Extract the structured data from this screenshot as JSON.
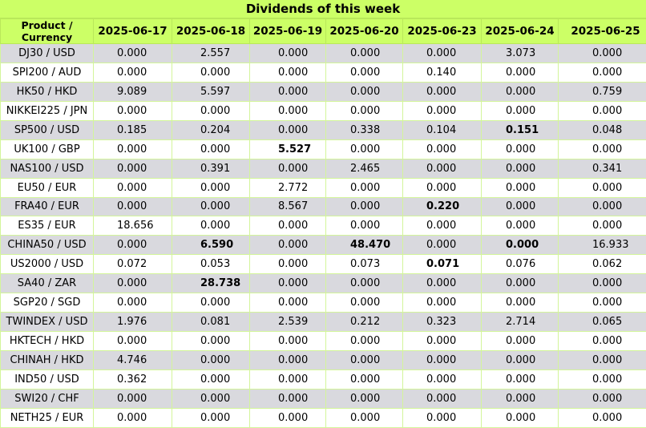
{
  "title": "Dividends of this week",
  "header": {
    "product": "Product / Currency",
    "dates": [
      "2025-06-17",
      "2025-06-18",
      "2025-06-19",
      "2025-06-20",
      "2025-06-23",
      "2025-06-24",
      "2025-06-25"
    ]
  },
  "rows": [
    {
      "product": "DJ30 / USD",
      "values": [
        "0.000",
        "2.557",
        "0.000",
        "0.000",
        "0.000",
        "3.073",
        "0.000"
      ],
      "bold": []
    },
    {
      "product": "SPI200 / AUD",
      "values": [
        "0.000",
        "0.000",
        "0.000",
        "0.000",
        "0.140",
        "0.000",
        "0.000"
      ],
      "bold": []
    },
    {
      "product": "HK50 / HKD",
      "values": [
        "9.089",
        "5.597",
        "0.000",
        "0.000",
        "0.000",
        "0.000",
        "0.759"
      ],
      "bold": []
    },
    {
      "product": "NIKKEI225 / JPN",
      "values": [
        "0.000",
        "0.000",
        "0.000",
        "0.000",
        "0.000",
        "0.000",
        "0.000"
      ],
      "bold": []
    },
    {
      "product": "SP500 / USD",
      "values": [
        "0.185",
        "0.204",
        "0.000",
        "0.338",
        "0.104",
        "0.151",
        "0.048"
      ],
      "bold": [
        5
      ]
    },
    {
      "product": "UK100 / GBP",
      "values": [
        "0.000",
        "0.000",
        "5.527",
        "0.000",
        "0.000",
        "0.000",
        "0.000"
      ],
      "bold": [
        2
      ]
    },
    {
      "product": "NAS100 / USD",
      "values": [
        "0.000",
        "0.391",
        "0.000",
        "2.465",
        "0.000",
        "0.000",
        "0.341"
      ],
      "bold": []
    },
    {
      "product": "EU50 / EUR",
      "values": [
        "0.000",
        "0.000",
        "2.772",
        "0.000",
        "0.000",
        "0.000",
        "0.000"
      ],
      "bold": []
    },
    {
      "product": "FRA40 / EUR",
      "values": [
        "0.000",
        "0.000",
        "8.567",
        "0.000",
        "0.220",
        "0.000",
        "0.000"
      ],
      "bold": [
        4
      ]
    },
    {
      "product": "ES35 / EUR",
      "values": [
        "18.656",
        "0.000",
        "0.000",
        "0.000",
        "0.000",
        "0.000",
        "0.000"
      ],
      "bold": []
    },
    {
      "product": "CHINA50 / USD",
      "values": [
        "0.000",
        "6.590",
        "0.000",
        "48.470",
        "0.000",
        "0.000",
        "16.933"
      ],
      "bold": [
        1,
        3,
        5
      ]
    },
    {
      "product": "US2000 / USD",
      "values": [
        "0.072",
        "0.053",
        "0.000",
        "0.073",
        "0.071",
        "0.076",
        "0.062"
      ],
      "bold": [
        4
      ]
    },
    {
      "product": "SA40 / ZAR",
      "values": [
        "0.000",
        "28.738",
        "0.000",
        "0.000",
        "0.000",
        "0.000",
        "0.000"
      ],
      "bold": [
        1
      ]
    },
    {
      "product": "SGP20 / SGD",
      "values": [
        "0.000",
        "0.000",
        "0.000",
        "0.000",
        "0.000",
        "0.000",
        "0.000"
      ],
      "bold": []
    },
    {
      "product": "TWINDEX / USD",
      "values": [
        "1.976",
        "0.081",
        "2.539",
        "0.212",
        "0.323",
        "2.714",
        "0.065"
      ],
      "bold": []
    },
    {
      "product": "HKTECH / HKD",
      "values": [
        "0.000",
        "0.000",
        "0.000",
        "0.000",
        "0.000",
        "0.000",
        "0.000"
      ],
      "bold": []
    },
    {
      "product": "CHINAH / HKD",
      "values": [
        "4.746",
        "0.000",
        "0.000",
        "0.000",
        "0.000",
        "0.000",
        "0.000"
      ],
      "bold": []
    },
    {
      "product": "IND50 / USD",
      "values": [
        "0.362",
        "0.000",
        "0.000",
        "0.000",
        "0.000",
        "0.000",
        "0.000"
      ],
      "bold": []
    },
    {
      "product": "SWI20 / CHF",
      "values": [
        "0.000",
        "0.000",
        "0.000",
        "0.000",
        "0.000",
        "0.000",
        "0.000"
      ],
      "bold": []
    },
    {
      "product": "NETH25 / EUR",
      "values": [
        "0.000",
        "0.000",
        "0.000",
        "0.000",
        "0.000",
        "0.000",
        "0.000"
      ],
      "bold": []
    }
  ]
}
